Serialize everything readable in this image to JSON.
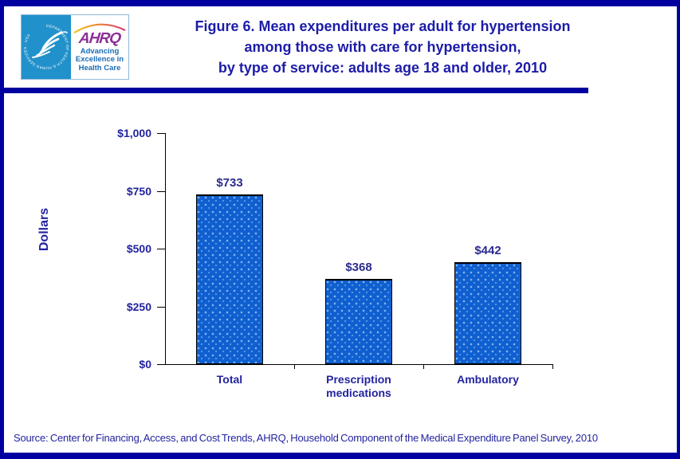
{
  "header": {
    "title_line1": "Figure 6. Mean expenditures per adult for hypertension",
    "title_line2": "among those with care for hypertension,",
    "title_line3": "by type of service: adults age 18 and older, 2010",
    "logo": {
      "seal_text": "DEPARTMENT OF HEALTH & HUMAN SERVICES · USA",
      "ahrq_acronym": "AHRQ",
      "tagline_line1": "Advancing",
      "tagline_line2": "Excellence in",
      "tagline_line3": "Health Care"
    }
  },
  "chart_data": {
    "type": "bar",
    "title": "Mean expenditures per adult for hypertension among those with care for hypertension, by type of service: adults age 18 and older, 2010",
    "categories": [
      "Total",
      "Prescription medications",
      "Ambulatory"
    ],
    "values": [
      733,
      368,
      442
    ],
    "value_labels": [
      "$733",
      "$368",
      "$442"
    ],
    "xlabel": "",
    "ylabel": "Dollars",
    "ylim": [
      0,
      1000
    ],
    "yticks": [
      {
        "value": 0,
        "label": "$0"
      },
      {
        "value": 250,
        "label": "$250"
      },
      {
        "value": 500,
        "label": "$500"
      },
      {
        "value": 750,
        "label": "$750"
      },
      {
        "value": 1000,
        "label": "$1,000"
      }
    ],
    "grid": false,
    "legend": "none",
    "bar_color": "#0F5FD0",
    "bar_border_color": "#000000"
  },
  "footer": {
    "source": "Source: Center for Financing, Access, and Cost Trends, AHRQ, Household Component of the Medical Expenditure Panel Survey, 2010"
  },
  "colors": {
    "frame_navy": "#0000A0",
    "title_navy": "#1C1CA8",
    "axis_text_navy": "#2323A0",
    "hhs_blue": "#2191CB",
    "ahrq_purple": "#8B3096",
    "tagline_blue": "#1B6CB5"
  }
}
